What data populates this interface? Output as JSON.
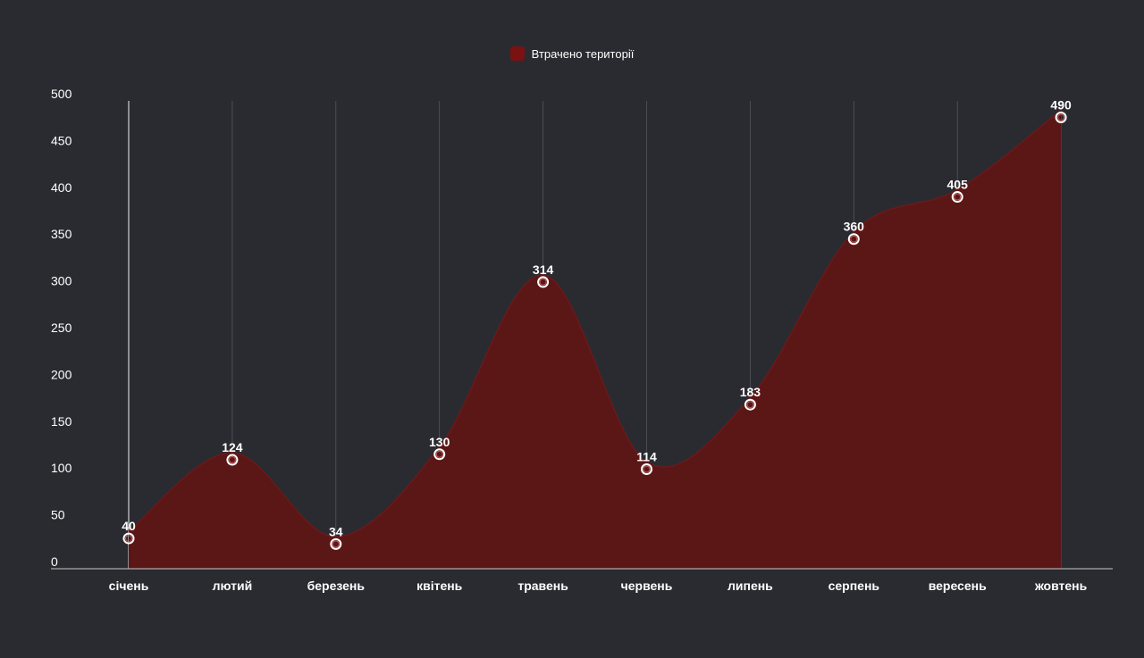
{
  "colors": {
    "background": "#2a2b31",
    "area_fill": "#5b1616",
    "series_line": "#6b1919",
    "legend_swatch": "#7a1212",
    "marker_fill": "#ffffff",
    "marker_stroke": "#c46060",
    "gridline": "#55565c",
    "axis": "#c8c8c8"
  },
  "chart_data": {
    "type": "area",
    "categories": [
      "січень",
      "лютий",
      "березень",
      "квітень",
      "травень",
      "червень",
      "липень",
      "серпень",
      "вересень",
      "жовтень"
    ],
    "series": [
      {
        "name": "Втрачено території",
        "values": [
          40,
          124,
          34,
          130,
          314,
          114,
          183,
          360,
          405,
          490
        ]
      }
    ],
    "ylim": [
      0,
      500
    ],
    "yticks": [
      0,
      50,
      100,
      150,
      200,
      250,
      300,
      350,
      400,
      450,
      500
    ],
    "grid": "vertical",
    "legend": "top-center",
    "smooth": true,
    "markers": true,
    "data_labels": true
  }
}
